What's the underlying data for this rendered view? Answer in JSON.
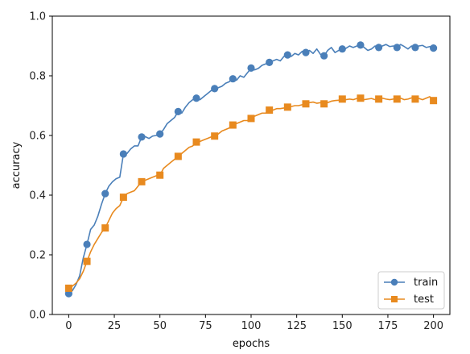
{
  "chart_data": {
    "type": "line",
    "xlabel": "epochs",
    "ylabel": "accuracy",
    "xlim": [
      -9,
      209
    ],
    "ylim": [
      0.0,
      1.0
    ],
    "x_ticks": [
      0,
      25,
      50,
      75,
      100,
      125,
      150,
      175,
      200
    ],
    "x_tick_labels": [
      "0",
      "25",
      "50",
      "75",
      "100",
      "125",
      "150",
      "175",
      "200"
    ],
    "y_ticks": [
      0.0,
      0.2,
      0.4,
      0.6,
      0.8,
      1.0
    ],
    "y_tick_labels": [
      "0.0",
      "0.2",
      "0.4",
      "0.6",
      "0.8",
      "1.0"
    ],
    "grid": false,
    "legend_position": "bottom-right",
    "series": [
      {
        "name": "train",
        "color": "#4a7fb9",
        "marker": "circle",
        "x": [
          0,
          10,
          20,
          30,
          40,
          50,
          60,
          70,
          80,
          90,
          100,
          110,
          120,
          130,
          140,
          150,
          160,
          170,
          180,
          190,
          200
        ],
        "values": [
          0.07,
          0.235,
          0.405,
          0.538,
          0.595,
          0.605,
          0.68,
          0.725,
          0.757,
          0.79,
          0.826,
          0.845,
          0.87,
          0.878,
          0.867,
          0.89,
          0.903,
          0.895,
          0.895,
          0.895,
          0.893
        ],
        "line_x": [
          0,
          2,
          4,
          6,
          8,
          10,
          12,
          14,
          16,
          18,
          20,
          22,
          24,
          26,
          28,
          30,
          32,
          34,
          36,
          38,
          40,
          42,
          44,
          46,
          48,
          50,
          52,
          54,
          56,
          58,
          60,
          62,
          64,
          66,
          68,
          70,
          72,
          74,
          76,
          78,
          80,
          82,
          84,
          86,
          88,
          90,
          92,
          94,
          96,
          98,
          100,
          102,
          104,
          106,
          108,
          110,
          112,
          114,
          116,
          118,
          120,
          122,
          124,
          126,
          128,
          130,
          132,
          134,
          136,
          138,
          140,
          142,
          144,
          146,
          148,
          150,
          152,
          154,
          156,
          158,
          160,
          162,
          164,
          166,
          168,
          170,
          172,
          174,
          176,
          178,
          180,
          182,
          184,
          186,
          188,
          190,
          192,
          194,
          196,
          198,
          200
        ],
        "line_values": [
          0.07,
          0.08,
          0.1,
          0.13,
          0.19,
          0.235,
          0.285,
          0.3,
          0.33,
          0.37,
          0.405,
          0.43,
          0.445,
          0.455,
          0.46,
          0.538,
          0.54,
          0.555,
          0.565,
          0.565,
          0.595,
          0.596,
          0.59,
          0.598,
          0.6,
          0.605,
          0.62,
          0.64,
          0.65,
          0.66,
          0.68,
          0.675,
          0.695,
          0.71,
          0.72,
          0.725,
          0.72,
          0.73,
          0.74,
          0.75,
          0.757,
          0.76,
          0.765,
          0.775,
          0.78,
          0.79,
          0.785,
          0.8,
          0.795,
          0.81,
          0.826,
          0.82,
          0.825,
          0.835,
          0.84,
          0.845,
          0.85,
          0.855,
          0.85,
          0.865,
          0.87,
          0.865,
          0.875,
          0.87,
          0.882,
          0.878,
          0.885,
          0.875,
          0.89,
          0.872,
          0.867,
          0.885,
          0.895,
          0.878,
          0.885,
          0.89,
          0.892,
          0.9,
          0.895,
          0.9,
          0.903,
          0.895,
          0.885,
          0.89,
          0.9,
          0.895,
          0.9,
          0.905,
          0.898,
          0.9,
          0.895,
          0.905,
          0.898,
          0.89,
          0.9,
          0.895,
          0.9,
          0.902,
          0.895,
          0.898,
          0.893
        ]
      },
      {
        "name": "test",
        "color": "#e88a1f",
        "marker": "square",
        "x": [
          0,
          10,
          20,
          30,
          40,
          50,
          60,
          70,
          80,
          90,
          100,
          110,
          120,
          130,
          140,
          150,
          160,
          170,
          180,
          190,
          200
        ],
        "values": [
          0.088,
          0.178,
          0.29,
          0.393,
          0.445,
          0.467,
          0.53,
          0.578,
          0.598,
          0.635,
          0.657,
          0.685,
          0.695,
          0.706,
          0.706,
          0.722,
          0.725,
          0.722,
          0.722,
          0.722,
          0.717
        ],
        "line_x": [
          0,
          2,
          4,
          6,
          8,
          10,
          12,
          14,
          16,
          18,
          20,
          22,
          24,
          26,
          28,
          30,
          32,
          34,
          36,
          38,
          40,
          42,
          44,
          46,
          48,
          50,
          52,
          54,
          56,
          58,
          60,
          62,
          64,
          66,
          68,
          70,
          72,
          74,
          76,
          78,
          80,
          82,
          84,
          86,
          88,
          90,
          92,
          94,
          96,
          98,
          100,
          102,
          104,
          106,
          108,
          110,
          112,
          114,
          116,
          118,
          120,
          122,
          124,
          126,
          128,
          130,
          132,
          134,
          136,
          138,
          140,
          142,
          144,
          146,
          148,
          150,
          152,
          154,
          156,
          158,
          160,
          162,
          164,
          166,
          168,
          170,
          172,
          174,
          176,
          178,
          180,
          182,
          184,
          186,
          188,
          190,
          192,
          194,
          196,
          198,
          200
        ],
        "line_values": [
          0.088,
          0.095,
          0.105,
          0.12,
          0.145,
          0.178,
          0.21,
          0.235,
          0.255,
          0.275,
          0.29,
          0.315,
          0.34,
          0.355,
          0.365,
          0.393,
          0.405,
          0.41,
          0.415,
          0.43,
          0.445,
          0.45,
          0.455,
          0.46,
          0.465,
          0.467,
          0.49,
          0.5,
          0.51,
          0.52,
          0.53,
          0.54,
          0.55,
          0.56,
          0.565,
          0.578,
          0.58,
          0.585,
          0.59,
          0.595,
          0.598,
          0.605,
          0.615,
          0.62,
          0.625,
          0.635,
          0.64,
          0.645,
          0.65,
          0.65,
          0.657,
          0.665,
          0.67,
          0.675,
          0.675,
          0.685,
          0.685,
          0.69,
          0.69,
          0.692,
          0.695,
          0.697,
          0.7,
          0.7,
          0.703,
          0.706,
          0.71,
          0.712,
          0.708,
          0.71,
          0.706,
          0.71,
          0.715,
          0.717,
          0.718,
          0.722,
          0.72,
          0.722,
          0.72,
          0.724,
          0.725,
          0.72,
          0.722,
          0.724,
          0.72,
          0.722,
          0.725,
          0.722,
          0.72,
          0.722,
          0.722,
          0.725,
          0.72,
          0.722,
          0.726,
          0.722,
          0.724,
          0.72,
          0.725,
          0.73,
          0.717
        ]
      }
    ]
  }
}
